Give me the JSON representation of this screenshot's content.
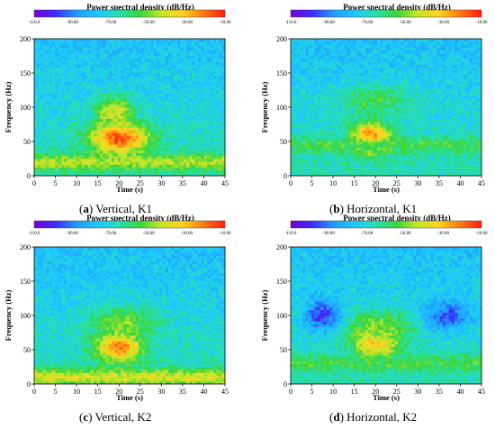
{
  "colorbar": {
    "title": "Power spectral density (dB/Hz)",
    "ticks": [
      "-110.0",
      "-90.00",
      "-70.00",
      "-50.00",
      "-30.00",
      "-10.00"
    ],
    "colors": [
      "#7a00d4",
      "#3b2bff",
      "#1f9bff",
      "#1ec8ff",
      "#27e0b0",
      "#39d63a",
      "#c9e62a",
      "#ffd21e",
      "#ff7a10",
      "#ff1a10"
    ]
  },
  "chart_data": [
    {
      "type": "heatmap",
      "caption_letter": "a",
      "caption_text": "Vertical, K1",
      "xlabel": "Time (s)",
      "ylabel": "Frequency (Hz)",
      "xlim": [
        0,
        45
      ],
      "ylim": [
        0,
        200
      ],
      "xticks": [
        "0",
        "5",
        "10",
        "15",
        "20",
        "25",
        "30",
        "35",
        "40",
        "45"
      ],
      "yticks": [
        "0",
        "50",
        "100",
        "150",
        "200"
      ],
      "color_range_db": [
        -110,
        -10
      ],
      "features": [
        {
          "t_range": [
            12,
            28
          ],
          "f_center": 55,
          "peak_db": -15
        },
        {
          "t_range": [
            14,
            24
          ],
          "f_center": 95,
          "peak_db": -40
        },
        {
          "t_range": [
            0,
            45
          ],
          "f_center": 20,
          "peak_db": -45
        }
      ]
    },
    {
      "type": "heatmap",
      "caption_letter": "b",
      "caption_text": "Horizontal, K1",
      "xlabel": "Time (s)",
      "ylabel": "Frequency (Hz)",
      "xlim": [
        0,
        45
      ],
      "ylim": [
        0,
        200
      ],
      "xticks": [
        "0",
        "5",
        "10",
        "15",
        "20",
        "25",
        "30",
        "35",
        "40",
        "45"
      ],
      "yticks": [
        "0",
        "50",
        "100",
        "150",
        "200"
      ],
      "color_range_db": [
        -110,
        -10
      ],
      "features": [
        {
          "t_range": [
            14,
            24
          ],
          "f_center": 55,
          "peak_db": -12
        },
        {
          "t_range": [
            10,
            30
          ],
          "f_center": 110,
          "peak_db": -55
        },
        {
          "t_range": [
            0,
            45
          ],
          "f_center": 45,
          "peak_db": -55
        }
      ]
    },
    {
      "type": "heatmap",
      "caption_letter": "c",
      "caption_text": "Vertical, K2",
      "xlabel": "Time (s)",
      "ylabel": "Frequency (Hz)",
      "xlim": [
        0,
        45
      ],
      "ylim": [
        0,
        200
      ],
      "xticks": [
        "0",
        "5",
        "10",
        "15",
        "20",
        "25",
        "30",
        "35",
        "40",
        "45"
      ],
      "yticks": [
        "0",
        "50",
        "100",
        "150",
        "200"
      ],
      "color_range_db": [
        -110,
        -10
      ],
      "features": [
        {
          "t_range": [
            14,
            26
          ],
          "f_center": 55,
          "peak_db": -20
        },
        {
          "t_range": [
            12,
            30
          ],
          "f_center": 90,
          "peak_db": -50
        },
        {
          "t_range": [
            0,
            45
          ],
          "f_center": 10,
          "peak_db": -40
        }
      ]
    },
    {
      "type": "heatmap",
      "caption_letter": "d",
      "caption_text": "Horizontal, K2",
      "xlabel": "Time (s)",
      "ylabel": "Frequency (Hz)",
      "xlim": [
        0,
        45
      ],
      "ylim": [
        0,
        200
      ],
      "xticks": [
        "0",
        "5",
        "10",
        "15",
        "20",
        "25",
        "30",
        "35",
        "40",
        "45"
      ],
      "yticks": [
        "0",
        "50",
        "100",
        "150",
        "200"
      ],
      "color_range_db": [
        -110,
        -10
      ],
      "features": [
        {
          "t_range": [
            14,
            26
          ],
          "f_center": 62,
          "peak_db": -25
        },
        {
          "t_range": [
            12,
            30
          ],
          "f_center": 85,
          "peak_db": -50
        },
        {
          "t_range": [
            0,
            45
          ],
          "f_center": 30,
          "peak_db": -55
        },
        {
          "t_range": [
            3,
            12
          ],
          "f_center": 100,
          "peak_db": -100
        },
        {
          "t_range": [
            31,
            43
          ],
          "f_center": 100,
          "peak_db": -95
        }
      ]
    }
  ]
}
